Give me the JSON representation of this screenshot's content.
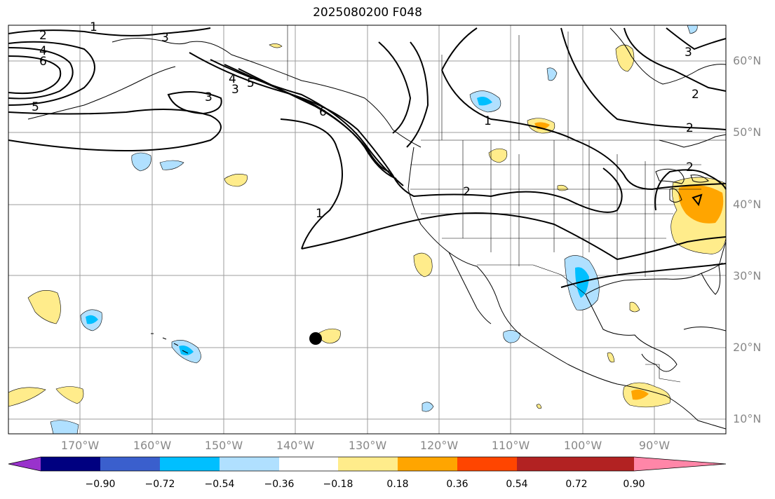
{
  "title": "2025080200 F048",
  "lat_labels": [
    "60°N",
    "50°N",
    "40°N",
    "30°N",
    "20°N",
    "10°N"
  ],
  "lon_labels": [
    "170°W",
    "160°W",
    "150°W",
    "140°W",
    "130°W",
    "120°W",
    "110°W",
    "100°W",
    "90°W"
  ],
  "contour_labels": [
    "1",
    "2",
    "3",
    "4",
    "5",
    "6"
  ],
  "colorbar": {
    "ticks": [
      "−0.90",
      "−0.72",
      "−0.54",
      "−0.36",
      "−0.18",
      "0.18",
      "0.36",
      "0.54",
      "0.72",
      "0.90"
    ],
    "colors": [
      "#9932cc",
      "#000080",
      "#3a5fcd",
      "#00bfff",
      "#b0e0ff",
      "#ffffff",
      "#ffec8b",
      "#ffa500",
      "#ff4500",
      "#b22222",
      "#ff86a8"
    ]
  },
  "marker": "storm-position-dot"
}
